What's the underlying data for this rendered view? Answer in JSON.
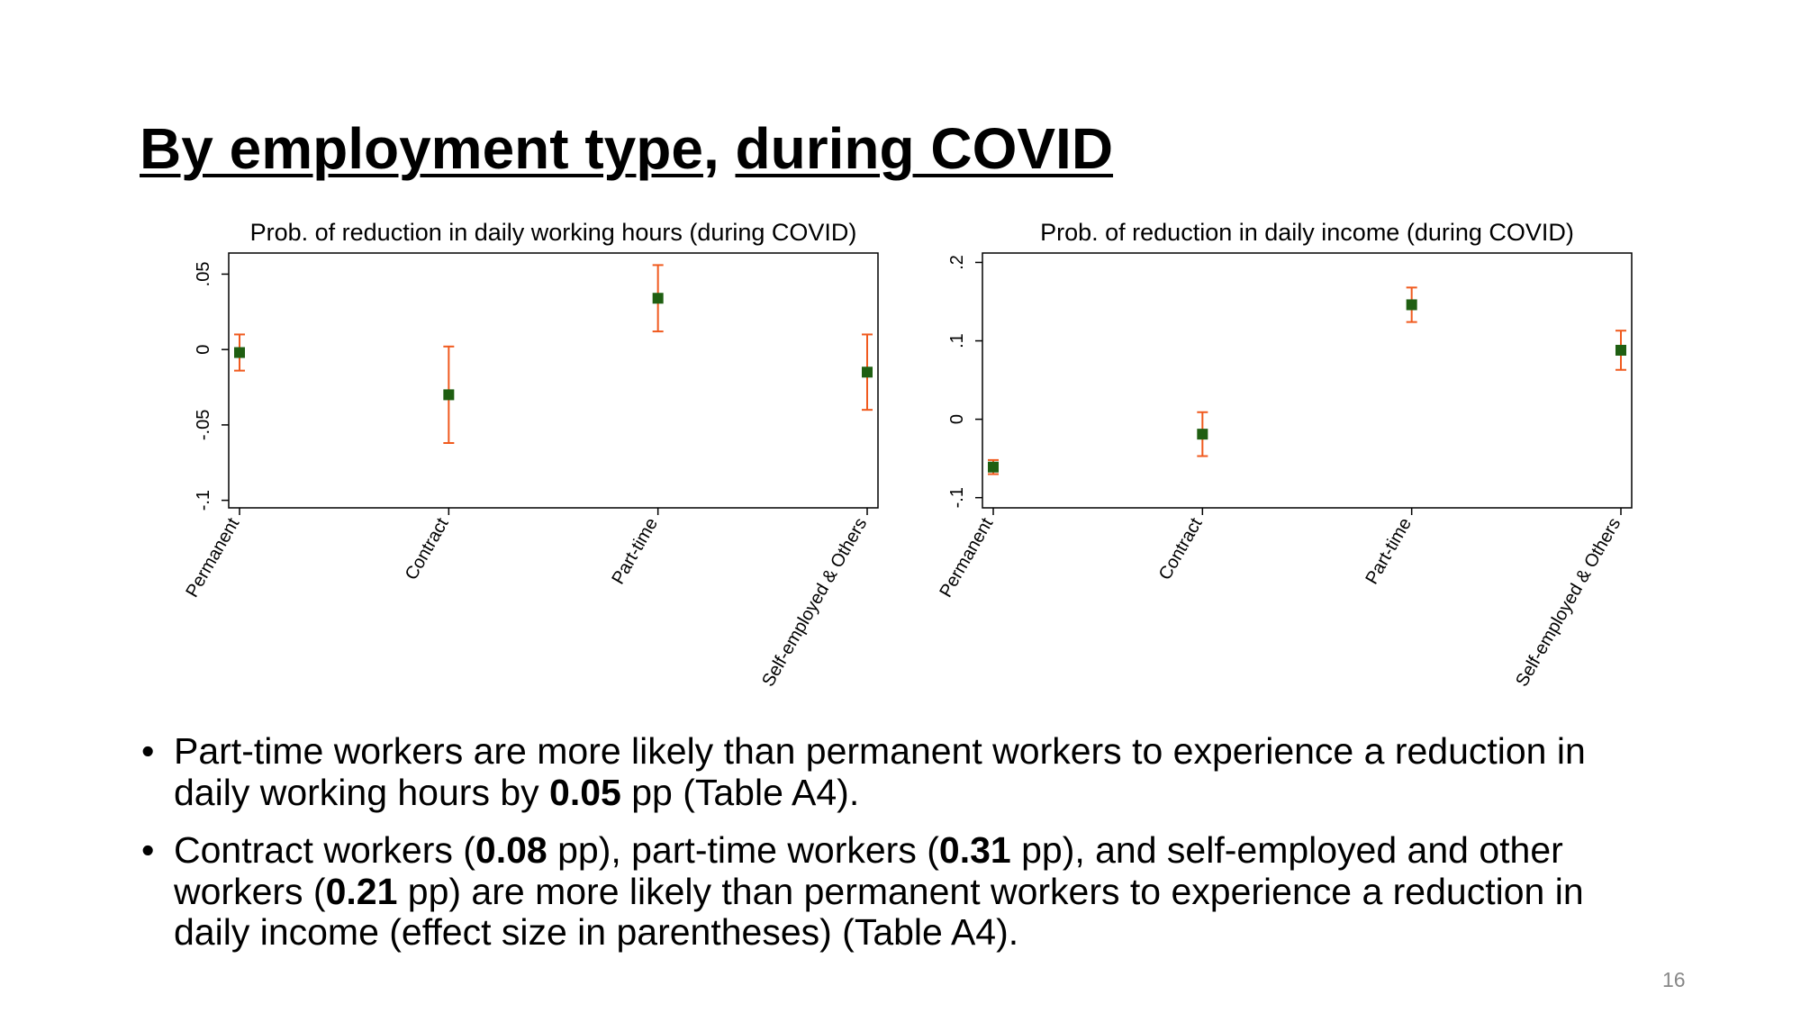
{
  "title_parts": [
    "By employment type",
    ", ",
    "during COVID"
  ],
  "chart_data": [
    {
      "type": "errorbar",
      "title": "Prob. of reduction in daily working hours (during COVID)",
      "categories": [
        "Permanent",
        "Contract",
        "Part-time",
        "Self-employed & Others"
      ],
      "values": [
        -0.002,
        -0.03,
        0.034,
        -0.015
      ],
      "errors": [
        0.012,
        0.032,
        0.022,
        0.025
      ],
      "color": "#1f5f12",
      "error_color": "#f05a1e",
      "ylim": [
        -0.105,
        0.064
      ],
      "yticks": [
        {
          "value": -0.1,
          "label": "-.1"
        },
        {
          "value": -0.05,
          "label": "-.05"
        },
        0,
        {
          "value": 0.05,
          "label": ".05"
        }
      ]
    },
    {
      "type": "errorbar",
      "title": "Prob. of reduction in daily income (during COVID)",
      "categories": [
        "Permanent",
        "Contract",
        "Part-time",
        "Self-employed & Others"
      ],
      "values": [
        -0.061,
        -0.019,
        0.146,
        0.088
      ],
      "errors": [
        0.009,
        0.028,
        0.022,
        0.025
      ],
      "color": "#1f5f12",
      "error_color": "#f05a1e",
      "ylim": [
        -0.113,
        0.212
      ],
      "yticks": [
        {
          "value": -0.1,
          "label": "-.1"
        },
        0,
        {
          "value": 0.1,
          "label": ".1"
        },
        {
          "value": 0.2,
          "label": ".2"
        }
      ]
    }
  ],
  "bullets": [
    [
      {
        "text": "Part-time workers are more likely than permanent workers to experience a reduction in daily working hours by ",
        "bold": false
      },
      {
        "text": "0.05",
        "bold": true
      },
      {
        "text": " pp (Table A4).",
        "bold": false
      }
    ],
    [
      {
        "text": "Contract workers (",
        "bold": false
      },
      {
        "text": "0.08",
        "bold": true
      },
      {
        "text": " pp), part-time workers (",
        "bold": false
      },
      {
        "text": "0.31",
        "bold": true
      },
      {
        "text": " pp), and self-employed and other workers (",
        "bold": false
      },
      {
        "text": "0.21",
        "bold": true
      },
      {
        "text": " pp) are more likely than permanent workers to experience a reduction in daily income (effect size in parentheses) (Table A4).",
        "bold": false
      }
    ]
  ],
  "page_number": "16"
}
